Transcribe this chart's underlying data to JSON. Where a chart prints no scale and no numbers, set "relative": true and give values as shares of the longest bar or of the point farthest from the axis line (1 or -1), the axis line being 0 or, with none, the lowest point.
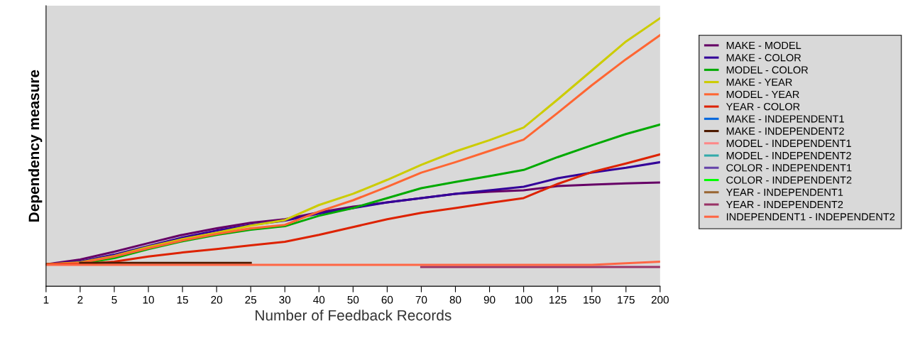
{
  "chart_data": {
    "type": "line",
    "relative": true,
    "xlabel": "Number of Feedback Records",
    "ylabel": "Dependency measure",
    "categories": [
      "1",
      "2",
      "5",
      "10",
      "15",
      "20",
      "25",
      "30",
      "40",
      "50",
      "60",
      "70",
      "80",
      "90",
      "100",
      "125",
      "150",
      "175",
      "200"
    ],
    "legend": "right",
    "grid": false,
    "marker": "none",
    "line_style": "solid",
    "series": [
      {
        "name": "MAKE - MODEL",
        "color": "#660066",
        "values": [
          0.082,
          0.1,
          0.129,
          0.161,
          0.192,
          0.216,
          0.237,
          0.25,
          0.276,
          0.297,
          0.313,
          0.329,
          0.345,
          0.353,
          0.358,
          0.374,
          0.379,
          0.384,
          0.387
        ]
      },
      {
        "name": "MAKE - COLOR",
        "color": "#330099",
        "values": [
          0.082,
          0.092,
          0.118,
          0.15,
          0.182,
          0.208,
          0.229,
          0.245,
          0.271,
          0.292,
          0.313,
          0.329,
          0.345,
          0.358,
          0.371,
          0.403,
          0.424,
          0.442,
          0.463
        ]
      },
      {
        "name": "MODEL - COLOR",
        "color": "#00aa00",
        "values": [
          0.082,
          0.084,
          0.105,
          0.139,
          0.168,
          0.192,
          0.211,
          0.224,
          0.263,
          0.292,
          0.329,
          0.366,
          0.389,
          0.411,
          0.434,
          0.482,
          0.526,
          0.568,
          0.603
        ]
      },
      {
        "name": "MAKE - YEAR",
        "color": "#cccc00",
        "values": [
          0.082,
          0.089,
          0.113,
          0.147,
          0.176,
          0.2,
          0.226,
          0.247,
          0.303,
          0.345,
          0.397,
          0.453,
          0.503,
          0.545,
          0.592,
          0.697,
          0.805,
          0.913,
          1
        ]
      },
      {
        "name": "MODEL - YEAR",
        "color": "#ff6633",
        "values": [
          0.082,
          0.087,
          0.111,
          0.142,
          0.171,
          0.195,
          0.216,
          0.229,
          0.279,
          0.321,
          0.371,
          0.424,
          0.463,
          0.505,
          0.547,
          0.647,
          0.75,
          0.847,
          0.937
        ]
      },
      {
        "name": "YEAR - COLOR",
        "color": "#dd2200",
        "values": [
          0.082,
          0.082,
          0.092,
          0.111,
          0.126,
          0.139,
          0.153,
          0.166,
          0.192,
          0.221,
          0.25,
          0.274,
          0.292,
          0.311,
          0.329,
          0.382,
          0.426,
          0.458,
          0.492
        ]
      },
      {
        "name": "MAKE - INDEPENDENT1",
        "color": "#0066dd",
        "values": [
          null,
          null,
          null,
          null,
          null,
          null,
          null,
          null,
          null,
          null,
          null,
          null,
          null,
          null,
          null,
          null,
          null,
          null,
          null
        ]
      },
      {
        "name": "MAKE - INDEPENDENT2",
        "color": "#4d1a00",
        "values": [
          null,
          0.087,
          0.087,
          0.087,
          0.087,
          0.087,
          0.087,
          null,
          null,
          null,
          null,
          null,
          null,
          null,
          null,
          null,
          null,
          null,
          null
        ]
      },
      {
        "name": "MODEL - INDEPENDENT1",
        "color": "#ff8888",
        "values": [
          null,
          null,
          null,
          null,
          null,
          null,
          null,
          null,
          null,
          null,
          null,
          null,
          null,
          null,
          null,
          null,
          null,
          null,
          null
        ]
      },
      {
        "name": "MODEL - INDEPENDENT2",
        "color": "#33aaaa",
        "values": [
          null,
          null,
          null,
          null,
          null,
          null,
          null,
          null,
          null,
          null,
          null,
          null,
          null,
          null,
          null,
          null,
          null,
          null,
          null
        ]
      },
      {
        "name": "COLOR - INDEPENDENT1",
        "color": "#6644aa",
        "values": [
          null,
          null,
          null,
          null,
          null,
          null,
          null,
          null,
          null,
          null,
          null,
          null,
          null,
          null,
          null,
          null,
          null,
          null,
          null
        ]
      },
      {
        "name": "COLOR - INDEPENDENT2",
        "color": "#00ff00",
        "values": [
          null,
          null,
          null,
          null,
          null,
          null,
          null,
          null,
          null,
          null,
          null,
          null,
          null,
          null,
          null,
          null,
          null,
          null,
          null
        ]
      },
      {
        "name": "YEAR - INDEPENDENT1",
        "color": "#996633",
        "values": [
          null,
          null,
          null,
          null,
          null,
          null,
          null,
          null,
          null,
          null,
          null,
          null,
          null,
          null,
          null,
          null,
          null,
          null,
          null
        ]
      },
      {
        "name": "YEAR - INDEPENDENT2",
        "color": "#993366",
        "values": [
          null,
          null,
          null,
          null,
          null,
          null,
          null,
          null,
          null,
          null,
          null,
          0.072,
          0.072,
          0.072,
          0.072,
          0.072,
          0.072,
          0.072,
          0.072
        ]
      },
      {
        "name": "INDEPENDENT1 - INDEPENDENT2",
        "color": "#ff6644",
        "values": [
          0.08,
          0.08,
          0.08,
          0.08,
          0.08,
          0.08,
          0.08,
          0.08,
          0.08,
          0.08,
          0.08,
          0.08,
          0.08,
          0.08,
          0.08,
          0.08,
          0.08,
          0.086,
          0.092
        ]
      }
    ]
  }
}
